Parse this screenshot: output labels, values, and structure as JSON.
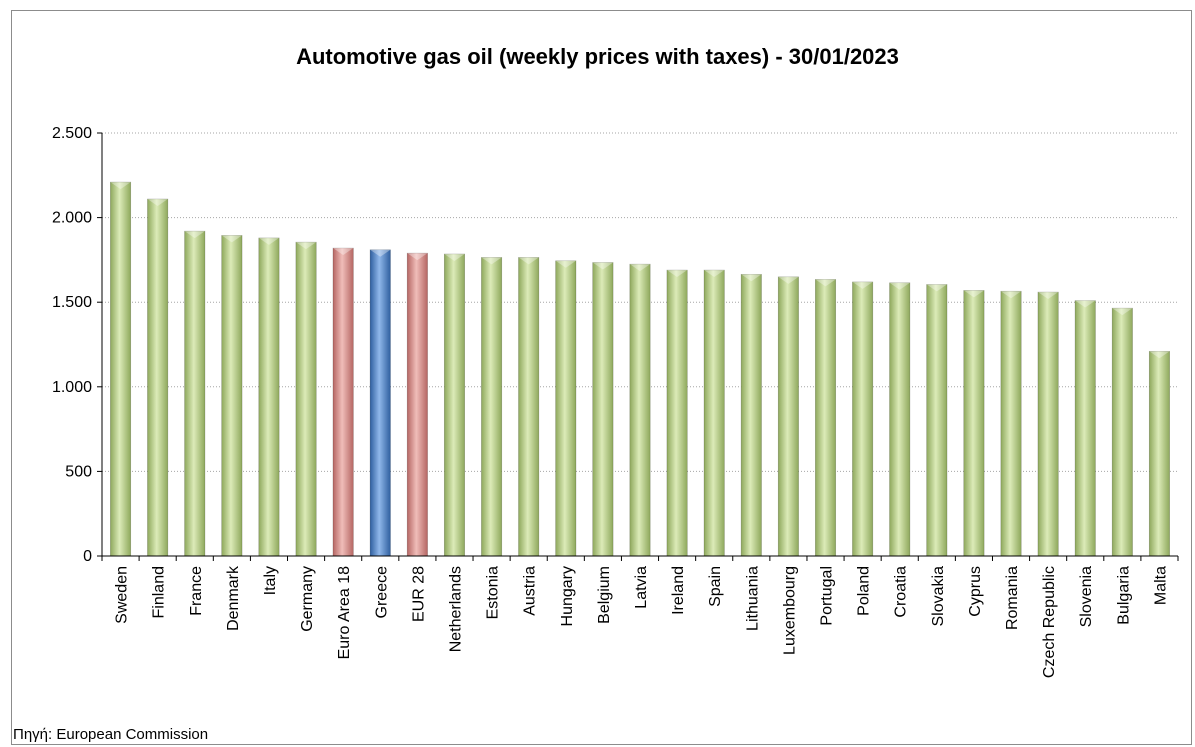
{
  "source_label": "Πηγή: European Commission",
  "colors": {
    "default_bar": "#b9d28a",
    "eu_bar": "#d9908c",
    "greece_bar": "#4a7fc7",
    "gridline": "#a6a6a6",
    "axis": "#000000"
  },
  "chart_data": {
    "type": "bar",
    "title": "Automotive gas oil (weekly prices with taxes) - 30/01/2023",
    "xlabel": "",
    "ylabel": "",
    "ylim": [
      0,
      2500
    ],
    "yticks": [
      0,
      500,
      1000,
      1500,
      2000,
      2500
    ],
    "ytick_labels": [
      "0",
      "500",
      "1.000",
      "1.500",
      "2.000",
      "2.500"
    ],
    "grid": true,
    "legend": "none",
    "categories": [
      "Sweden",
      "Finland",
      "France",
      "Denmark",
      "Italy",
      "Germany",
      "Euro Area 18",
      "Greece",
      "EUR 28",
      "Netherlands",
      "Estonia",
      "Austria",
      "Hungary",
      "Belgium",
      "Latvia",
      "Ireland",
      "Spain",
      "Lithuania",
      "Luxembourg",
      "Portugal",
      "Poland",
      "Croatia",
      "Slovakia",
      "Cyprus",
      "Romania",
      "Czech Republic",
      "Slovenia",
      "Bulgaria",
      "Malta"
    ],
    "values": [
      2210,
      2110,
      1920,
      1895,
      1880,
      1855,
      1820,
      1810,
      1790,
      1785,
      1765,
      1765,
      1745,
      1735,
      1725,
      1690,
      1690,
      1665,
      1650,
      1635,
      1620,
      1615,
      1605,
      1570,
      1565,
      1560,
      1510,
      1465,
      1210
    ],
    "highlight": {
      "Greece": "greece",
      "Euro Area 18": "eu",
      "EUR 28": "eu"
    }
  }
}
